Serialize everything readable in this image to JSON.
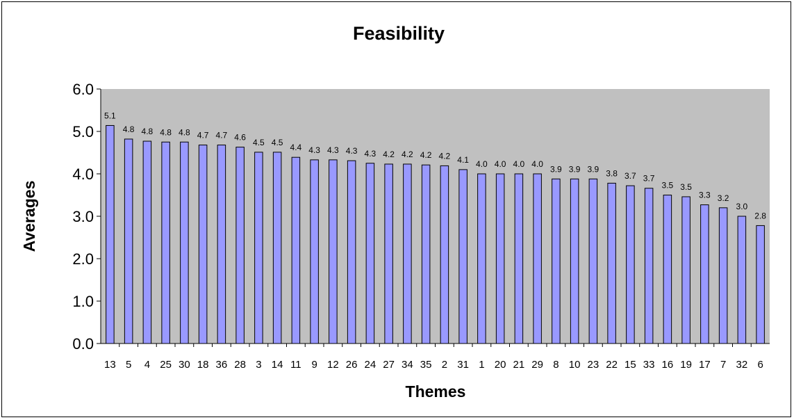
{
  "colors": {
    "plot_bg": "#c0c0c0",
    "bar_fill": "#9999ff",
    "bar_stroke": "#000000"
  },
  "chart_data": {
    "type": "bar",
    "title": "Feasibility",
    "xlabel": "Themes",
    "ylabel": "Averages",
    "ylim": [
      0,
      6
    ],
    "yticks": [
      "0.0",
      "1.0",
      "2.0",
      "3.0",
      "4.0",
      "5.0",
      "6.0"
    ],
    "grid": false,
    "categories": [
      "13",
      "5",
      "4",
      "25",
      "30",
      "18",
      "36",
      "28",
      "3",
      "14",
      "11",
      "9",
      "12",
      "26",
      "24",
      "27",
      "34",
      "35",
      "2",
      "31",
      "1",
      "20",
      "21",
      "29",
      "8",
      "10",
      "23",
      "22",
      "15",
      "33",
      "16",
      "19",
      "17",
      "7",
      "32",
      "6"
    ],
    "values": [
      5.14,
      4.82,
      4.77,
      4.75,
      4.75,
      4.68,
      4.68,
      4.63,
      4.51,
      4.51,
      4.39,
      4.33,
      4.33,
      4.31,
      4.25,
      4.23,
      4.23,
      4.21,
      4.19,
      4.1,
      4.0,
      4.0,
      4.0,
      4.0,
      3.88,
      3.88,
      3.88,
      3.78,
      3.72,
      3.66,
      3.5,
      3.46,
      3.27,
      3.2,
      3.0,
      2.78
    ],
    "data_labels": [
      "5.1",
      "4.8",
      "4.8",
      "4.8",
      "4.8",
      "4.7",
      "4.7",
      "4.6",
      "4.5",
      "4.5",
      "4.4",
      "4.3",
      "4.3",
      "4.3",
      "4.3",
      "4.2",
      "4.2",
      "4.2",
      "4.2",
      "4.1",
      "4.0",
      "4.0",
      "4.0",
      "4.0",
      "3.9",
      "3.9",
      "3.9",
      "3.8",
      "3.7",
      "3.7",
      "3.5",
      "3.5",
      "3.3",
      "3.2",
      "3.0",
      "2.8"
    ]
  }
}
